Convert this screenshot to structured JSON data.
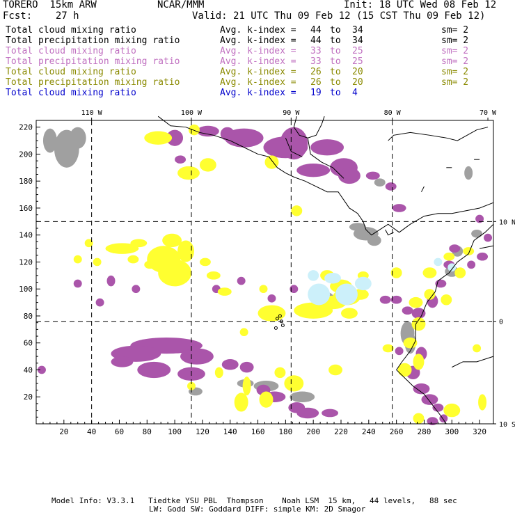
{
  "header": {
    "model": "TORERO  15km ARW",
    "org": "NCAR/MMM",
    "init": "Init: 18 UTC Wed 08 Feb 12",
    "fcst": "Fcst:    27 h",
    "valid": "Valid: 21 UTC Thu 09 Feb 12 (15 CST Thu 09 Feb 12)"
  },
  "legend": [
    {
      "name": "Total cloud mixing ratio",
      "index": "Avg. k-index =",
      "from": "44",
      "to_word": "to",
      "to": "34",
      "sm": "sm= 2",
      "color": "#000000"
    },
    {
      "name": "Total precipitation mixing ratio",
      "index": "Avg. k-index =",
      "from": "44",
      "to_word": "to",
      "to": "34",
      "sm": "sm= 2",
      "color": "#000000"
    },
    {
      "name": "Total cloud mixing ratio",
      "index": "Avg. k-index =",
      "from": "33",
      "to_word": "to",
      "to": "25",
      "sm": "sm= 2",
      "color": "#c070c0"
    },
    {
      "name": "Total precipitation mixing ratio",
      "index": "Avg. k-index =",
      "from": "33",
      "to_word": "to",
      "to": "25",
      "sm": "sm= 2",
      "color": "#c070c0"
    },
    {
      "name": "Total cloud mixing ratio",
      "index": "Avg. k-index =",
      "from": "26",
      "to_word": "to",
      "to": "20",
      "sm": "sm= 2",
      "color": "#8a8a00"
    },
    {
      "name": "Total precipitation mixing ratio",
      "index": "Avg. k-index =",
      "from": "26",
      "to_word": "to",
      "to": "20",
      "sm": "sm= 2",
      "color": "#8a8a00"
    },
    {
      "name": "Total cloud mixing ratio",
      "index": "Avg. k-index =",
      "from": "19",
      "to_word": "to",
      "to": "4",
      "sm": "",
      "color": "#0000cc"
    }
  ],
  "map": {
    "lon_labels": [
      "110 W",
      "100 W",
      "90 W",
      "80 W",
      "70 W"
    ],
    "lat_labels": [
      "10 N",
      "0",
      "10 S"
    ],
    "x_ticks": [
      "20",
      "40",
      "60",
      "80",
      "100",
      "120",
      "140",
      "160",
      "180",
      "200",
      "220",
      "240",
      "260",
      "280",
      "300",
      "320"
    ],
    "y_ticks": [
      "220",
      "200",
      "180",
      "160",
      "140",
      "120",
      "100",
      "80",
      "60",
      "40",
      "20"
    ],
    "colors": {
      "gray": "#a0a0a0",
      "purple": "#aa55aa",
      "yellow": "#ffff30",
      "light_blue": "#ccf0fa",
      "coast": "#000000"
    }
  },
  "footer": {
    "line1": "Model Info: V3.3.1   Tiedtke YSU PBL  Thompson    Noah LSM  15 km,   44 levels,   88 sec",
    "line2": "LW: Godd SW: Goddard DIFF: simple KM: 2D Smagor"
  }
}
